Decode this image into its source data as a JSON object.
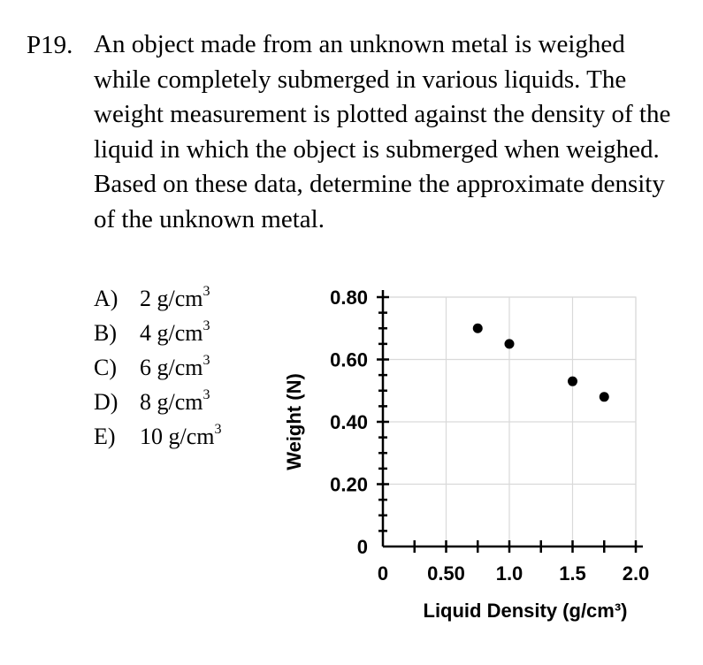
{
  "question": {
    "number": "P19.",
    "text": "An object made from an unknown metal is weighed while completely submerged in various liquids.  The weight measurement is plotted against the density of the liquid in which the object is submerged when weighed. Based on these data, determine the approximate density of the unknown metal.",
    "choices": [
      {
        "letter": "A)",
        "value": "2 g/cm",
        "sup": "3"
      },
      {
        "letter": "B)",
        "value": "4 g/cm",
        "sup": "3"
      },
      {
        "letter": "C)",
        "value": "6 g/cm",
        "sup": "3"
      },
      {
        "letter": "D)",
        "value": "8 g/cm",
        "sup": "3"
      },
      {
        "letter": "E)",
        "value": "10 g/cm",
        "sup": "3"
      }
    ]
  },
  "chart_data": {
    "type": "scatter",
    "xlabel": "Liquid Density (g/cm³)",
    "ylabel": "Weight (N)",
    "xlim": [
      0,
      2.0
    ],
    "ylim": [
      0,
      0.8
    ],
    "xticks": [
      0,
      0.5,
      1.0,
      1.5,
      2.0
    ],
    "xtick_labels": [
      "0",
      "0.50",
      "1.0",
      "1.5",
      "2.0"
    ],
    "yticks": [
      0,
      0.2,
      0.4,
      0.6,
      0.8
    ],
    "ytick_labels": [
      "0",
      "0.20",
      "0.40",
      "0.60",
      "0.80"
    ],
    "grid": true,
    "points": [
      {
        "x": 0.75,
        "y": 0.7
      },
      {
        "x": 1.0,
        "y": 0.65
      },
      {
        "x": 1.5,
        "y": 0.53
      },
      {
        "x": 1.75,
        "y": 0.48
      }
    ],
    "colors": {
      "point": "#000000",
      "grid": "#d9d9d9",
      "axis": "#000000"
    }
  }
}
